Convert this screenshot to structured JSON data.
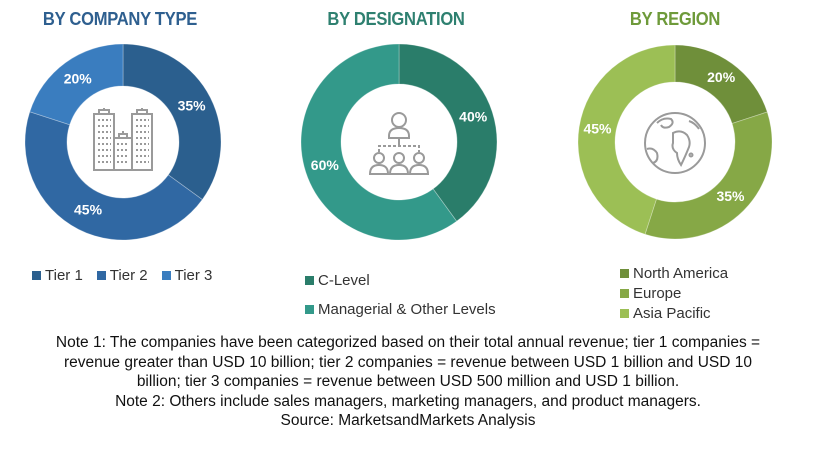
{
  "chart_data": [
    {
      "type": "pie",
      "title": "BY COMPANY TYPE",
      "title_color": "#2e5f8f",
      "center_icon": "buildings-icon",
      "categories": [
        "Tier 1",
        "Tier 2",
        "Tier 3"
      ],
      "values": [
        35,
        45,
        20
      ],
      "labels": [
        "35%",
        "45%",
        "20%"
      ],
      "colors": [
        "#2b5f8e",
        "#3068a3",
        "#3a7dbf"
      ],
      "legend_position": "bottom"
    },
    {
      "type": "pie",
      "title": "BY DESIGNATION",
      "title_color": "#2e8070",
      "center_icon": "org-hierarchy-icon",
      "categories": [
        "C-Level",
        "Managerial & Other Levels"
      ],
      "values": [
        40,
        60
      ],
      "labels": [
        "40%",
        "60%"
      ],
      "colors": [
        "#2a7d6a",
        "#33998a"
      ],
      "legend_position": "bottom"
    },
    {
      "type": "pie",
      "title": "BY REGION",
      "title_color": "#6e9a3a",
      "center_icon": "globe-icon",
      "categories": [
        "North America",
        "Europe",
        "Asia Pacific"
      ],
      "values": [
        20,
        35,
        45
      ],
      "labels": [
        "20%",
        "35%",
        "45%"
      ],
      "colors": [
        "#6f8f3a",
        "#86a846",
        "#9cbf55"
      ],
      "legend_position": "bottom"
    }
  ],
  "notes": {
    "line1": "Note 1: The companies have been categorized based on their total annual revenue; tier 1 companies =",
    "line2": "revenue greater than USD 10 billion; tier 2 companies = revenue between USD 1 billion and USD 10",
    "line3": "billion; tier 3 companies = revenue between USD 500 million and USD 1 billion.",
    "line4": "Note 2: Others include sales managers, marketing managers, and product managers.",
    "source": "Source: MarketsandMarkets Analysis"
  }
}
